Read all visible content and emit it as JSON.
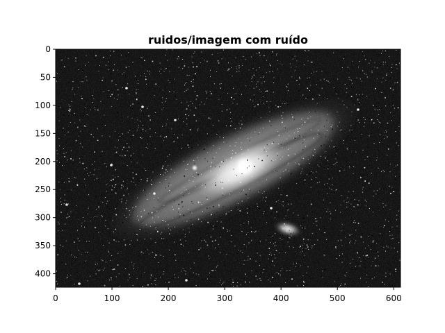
{
  "chart_data": {
    "type": "heatmap",
    "title": "ruidos/imagem com ruído",
    "image": {
      "subject": "galaxy",
      "colormap": "gray",
      "noise": "salt-and-pepper"
    },
    "xlim": [
      0,
      612
    ],
    "ylim": [
      424,
      0
    ],
    "xticks": [
      0,
      100,
      200,
      300,
      400,
      500,
      600
    ],
    "xtick_labels": [
      "0",
      "100",
      "200",
      "300",
      "400",
      "500",
      "600"
    ],
    "yticks": [
      0,
      50,
      100,
      150,
      200,
      250,
      300,
      350,
      400
    ],
    "ytick_labels": [
      "0",
      "50",
      "100",
      "150",
      "200",
      "250",
      "300",
      "350",
      "400"
    ],
    "xlabel": "",
    "ylabel": "",
    "grid": false,
    "colors": {
      "axis": "#000000",
      "background": "#ffffff"
    }
  }
}
